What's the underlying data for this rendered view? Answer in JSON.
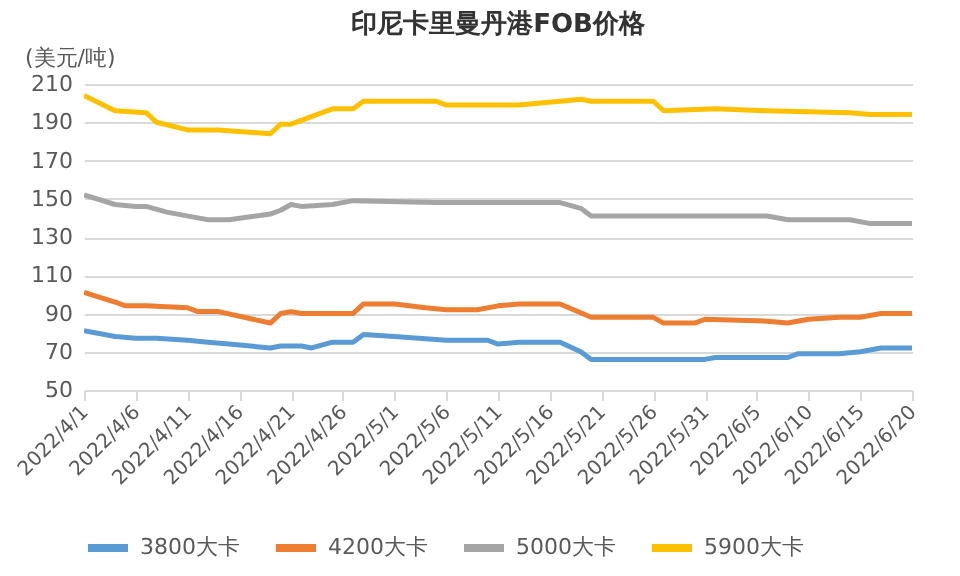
{
  "chart_data": {
    "type": "line",
    "title": "印尼卡里曼丹港FOB价格",
    "ylabel": "(美元/吨)",
    "ylim": [
      50,
      210
    ],
    "yticks": [
      50,
      70,
      90,
      110,
      130,
      150,
      170,
      190,
      210
    ],
    "xlim": [
      "2022-04-01",
      "2022-06-20"
    ],
    "xticks": [
      {
        "value": "2022-04-01",
        "label": "2022/4/1"
      },
      {
        "value": "2022-04-06",
        "label": "2022/4/6"
      },
      {
        "value": "2022-04-11",
        "label": "2022/4/11"
      },
      {
        "value": "2022-04-16",
        "label": "2022/4/16"
      },
      {
        "value": "2022-04-21",
        "label": "2022/4/21"
      },
      {
        "value": "2022-04-26",
        "label": "2022/4/26"
      },
      {
        "value": "2022-05-01",
        "label": "2022/5/1"
      },
      {
        "value": "2022-05-06",
        "label": "2022/5/6"
      },
      {
        "value": "2022-05-11",
        "label": "2022/5/11"
      },
      {
        "value": "2022-05-16",
        "label": "2022/5/16"
      },
      {
        "value": "2022-05-21",
        "label": "2022/5/21"
      },
      {
        "value": "2022-05-26",
        "label": "2022/5/26"
      },
      {
        "value": "2022-05-31",
        "label": "2022/5/31"
      },
      {
        "value": "2022-06-05",
        "label": "2022/6/5"
      },
      {
        "value": "2022-06-10",
        "label": "2022/6/10"
      },
      {
        "value": "2022-06-15",
        "label": "2022/6/15"
      },
      {
        "value": "2022-06-20",
        "label": "2022/6/20"
      }
    ],
    "grid": "y",
    "legend": "bottom",
    "series": [
      {
        "name": "3800大卡",
        "color": "#5b9bd5",
        "x": [
          "2022-04-01",
          "2022-04-04",
          "2022-04-06",
          "2022-04-08",
          "2022-04-11",
          "2022-04-13",
          "2022-04-15",
          "2022-04-19",
          "2022-04-20",
          "2022-04-22",
          "2022-04-23",
          "2022-04-25",
          "2022-04-27",
          "2022-04-28",
          "2022-05-01",
          "2022-05-06",
          "2022-05-10",
          "2022-05-11",
          "2022-05-13",
          "2022-05-17",
          "2022-05-19",
          "2022-05-20",
          "2022-05-31",
          "2022-06-01",
          "2022-06-08",
          "2022-06-09",
          "2022-06-13",
          "2022-06-15",
          "2022-06-17",
          "2022-06-20"
        ],
        "values": [
          81,
          78,
          77,
          77,
          76,
          75,
          74,
          72,
          73,
          73,
          72,
          75,
          75,
          79,
          78,
          76,
          76,
          74,
          75,
          75,
          70,
          66,
          66,
          67,
          67,
          69,
          69,
          70,
          72,
          72
        ]
      },
      {
        "name": "4200大卡",
        "color": "#ed7d31",
        "x": [
          "2022-04-01",
          "2022-04-04",
          "2022-04-05",
          "2022-04-07",
          "2022-04-11",
          "2022-04-12",
          "2022-04-14",
          "2022-04-19",
          "2022-04-20",
          "2022-04-21",
          "2022-04-22",
          "2022-04-27",
          "2022-04-28",
          "2022-05-01",
          "2022-05-04",
          "2022-05-06",
          "2022-05-09",
          "2022-05-11",
          "2022-05-13",
          "2022-05-17",
          "2022-05-20",
          "2022-05-26",
          "2022-05-27",
          "2022-05-30",
          "2022-05-31",
          "2022-06-06",
          "2022-06-08",
          "2022-06-10",
          "2022-06-13",
          "2022-06-15",
          "2022-06-17",
          "2022-06-20"
        ],
        "values": [
          101,
          96,
          94,
          94,
          93,
          91,
          91,
          85,
          90,
          91,
          90,
          90,
          95,
          95,
          93,
          92,
          92,
          94,
          95,
          95,
          88,
          88,
          85,
          85,
          87,
          86,
          85,
          87,
          88,
          88,
          90,
          90
        ]
      },
      {
        "name": "5000大卡",
        "color": "#a5a5a5",
        "x": [
          "2022-04-01",
          "2022-04-04",
          "2022-04-06",
          "2022-04-07",
          "2022-04-09",
          "2022-04-12",
          "2022-04-13",
          "2022-04-15",
          "2022-04-19",
          "2022-04-20",
          "2022-04-21",
          "2022-04-22",
          "2022-04-25",
          "2022-04-27",
          "2022-05-05",
          "2022-05-17",
          "2022-05-19",
          "2022-05-20",
          "2022-06-01",
          "2022-06-06",
          "2022-06-08",
          "2022-06-14",
          "2022-06-16",
          "2022-06-20"
        ],
        "values": [
          152,
          147,
          146,
          146,
          143,
          140,
          139,
          139,
          142,
          144,
          147,
          146,
          147,
          149,
          148,
          148,
          145,
          141,
          141,
          141,
          139,
          139,
          137,
          137
        ]
      },
      {
        "name": "5900大卡",
        "color": "#ffc000",
        "x": [
          "2022-04-01",
          "2022-04-04",
          "2022-04-07",
          "2022-04-08",
          "2022-04-11",
          "2022-04-14",
          "2022-04-19",
          "2022-04-20",
          "2022-04-21",
          "2022-04-25",
          "2022-04-27",
          "2022-04-28",
          "2022-05-05",
          "2022-05-06",
          "2022-05-13",
          "2022-05-17",
          "2022-05-19",
          "2022-05-20",
          "2022-05-26",
          "2022-05-27",
          "2022-06-01",
          "2022-06-06",
          "2022-06-14",
          "2022-06-16",
          "2022-06-20"
        ],
        "values": [
          204,
          196,
          195,
          190,
          186,
          186,
          184,
          189,
          189,
          197,
          197,
          201,
          201,
          199,
          199,
          201,
          202,
          201,
          201,
          196,
          197,
          196,
          195,
          194,
          194
        ]
      }
    ]
  }
}
